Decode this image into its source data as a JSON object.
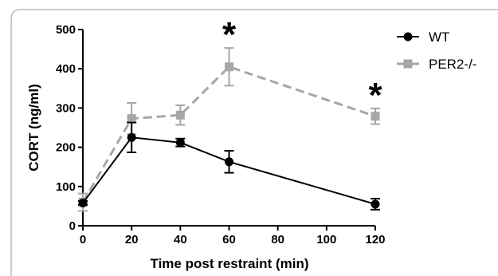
{
  "chart_data": {
    "type": "line",
    "xlabel": "Time post restraint (min)",
    "ylabel": "CORT (ng/ml)",
    "xlim": [
      0,
      120
    ],
    "ylim": [
      0,
      500
    ],
    "xticks": [
      "0",
      "20",
      "40",
      "60",
      "80",
      "100",
      "120"
    ],
    "yticks": [
      "0",
      "100",
      "200",
      "300",
      "400",
      "500"
    ],
    "grid": false,
    "legend_position": "top-right",
    "x": [
      0,
      20,
      40,
      60,
      120
    ],
    "series": [
      {
        "name": "WT",
        "color": "#000000",
        "line_style": "solid",
        "marker": "circle",
        "values": [
          58,
          225,
          212,
          163,
          55
        ],
        "error": [
          5,
          38,
          10,
          28,
          14
        ]
      },
      {
        "name": "PER2-/-",
        "color": "#a6a6a6",
        "line_style": "dashed",
        "marker": "square",
        "values": [
          60,
          273,
          282,
          405,
          279
        ],
        "error": [
          22,
          40,
          25,
          48,
          20
        ]
      }
    ],
    "annotations": [
      {
        "text": "*",
        "x": 60
      },
      {
        "text": "*",
        "x": 120
      }
    ]
  }
}
